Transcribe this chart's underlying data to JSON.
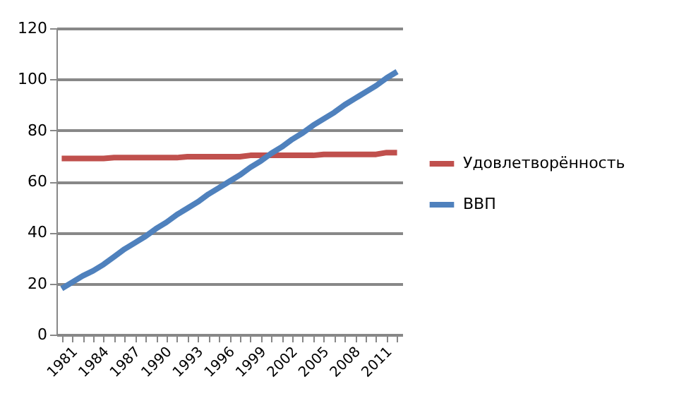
{
  "chart_data": {
    "type": "line",
    "categories": [
      "1981",
      null,
      null,
      "1984",
      null,
      null,
      "1987",
      null,
      null,
      "1990",
      null,
      null,
      "1993",
      null,
      null,
      "1996",
      null,
      null,
      "1999",
      null,
      null,
      "2002",
      null,
      null,
      "2005",
      null,
      null,
      "2008",
      null,
      null,
      "2011",
      null,
      null
    ],
    "series": [
      {
        "name": "Удовлетворённость",
        "color": "#c0504d",
        "values": [
          69,
          69,
          69,
          69,
          69,
          69.3,
          69.3,
          69.3,
          69.3,
          69.3,
          69.3,
          69.3,
          69.7,
          69.7,
          69.7,
          69.7,
          69.7,
          69.7,
          70.2,
          70.2,
          70.2,
          70.2,
          70.2,
          70.2,
          70.2,
          70.6,
          70.6,
          70.6,
          70.6,
          70.6,
          70.6,
          71.3,
          71.3
        ]
      },
      {
        "name": "ВВП",
        "color": "#4f81bd",
        "values": [
          18,
          20.5,
          23,
          25,
          27.5,
          30.5,
          33.5,
          36,
          38.5,
          41.5,
          44,
          47,
          49.5,
          52,
          55,
          57.5,
          60,
          62.5,
          65.5,
          68,
          71,
          73.5,
          76.5,
          79,
          82,
          84.5,
          87,
          90,
          92.5,
          95,
          97.5,
          100.5,
          103
        ]
      }
    ],
    "ylim": [
      0,
      120
    ],
    "yticks": [
      0,
      20,
      40,
      60,
      80,
      100,
      120
    ],
    "grid": "y",
    "legend": "right",
    "marker": "none",
    "line_style": "solid"
  }
}
